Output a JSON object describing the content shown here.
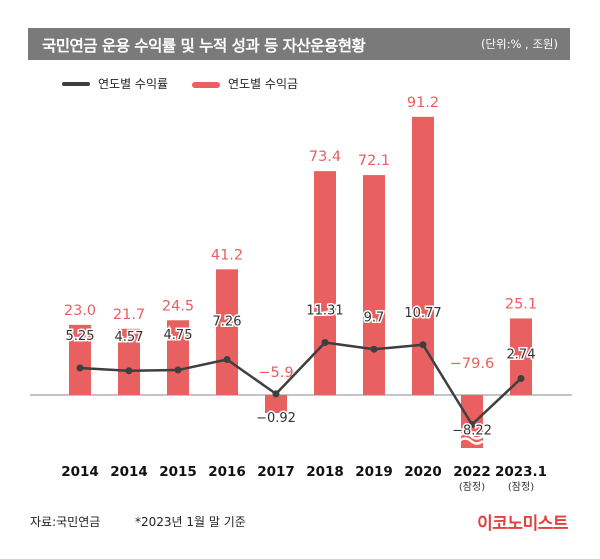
{
  "header": {
    "title": "국민연금 운용 수익률 및 누적 성과 등 자산운용현황",
    "unit": "(단위:% , 조원)"
  },
  "legend": {
    "line_label": "연도별 수익률",
    "bar_label": "연도별 수익금"
  },
  "footer": {
    "source": "자료:국민연금",
    "note": "*2023년 1월 말 기준",
    "brand": "이코노미스트"
  },
  "colors": {
    "bar": "#e8605f",
    "line": "#3f3f3f",
    "title_bg": "#7a7a7a",
    "brand": "#e0413e"
  },
  "chart_data": {
    "type": "bar",
    "categories": [
      "2014",
      "2014",
      "2015",
      "2016",
      "2017",
      "2018",
      "2019",
      "2020",
      "2022",
      "2023.1"
    ],
    "category_sublabels": [
      "",
      "",
      "",
      "",
      "",
      "",
      "",
      "",
      "(잠정)",
      "(잠정)"
    ],
    "series": [
      {
        "name": "연도별 수익금",
        "type": "bar",
        "values": [
          23.0,
          21.7,
          24.5,
          41.2,
          -5.9,
          73.4,
          72.1,
          91.2,
          -79.6,
          25.1
        ],
        "labels": [
          "23.0",
          "21.7",
          "24.5",
          "41.2",
          "−5.9",
          "73.4",
          "72.1",
          "91.2",
          "−79.6",
          "25.1"
        ]
      },
      {
        "name": "연도별 수익률",
        "type": "line",
        "values": [
          5.25,
          4.57,
          4.75,
          7.26,
          -0.92,
          11.31,
          9.7,
          10.77,
          -8.22,
          2.74
        ],
        "labels": [
          "5.25",
          "4.57",
          "4.75",
          "7.26",
          "−0.92",
          "11.31",
          "9.7",
          "10.77",
          "−8.22",
          "2.74"
        ]
      }
    ],
    "broken_axis_bar_index": 8,
    "legend_position": "top-left",
    "grid": false
  }
}
